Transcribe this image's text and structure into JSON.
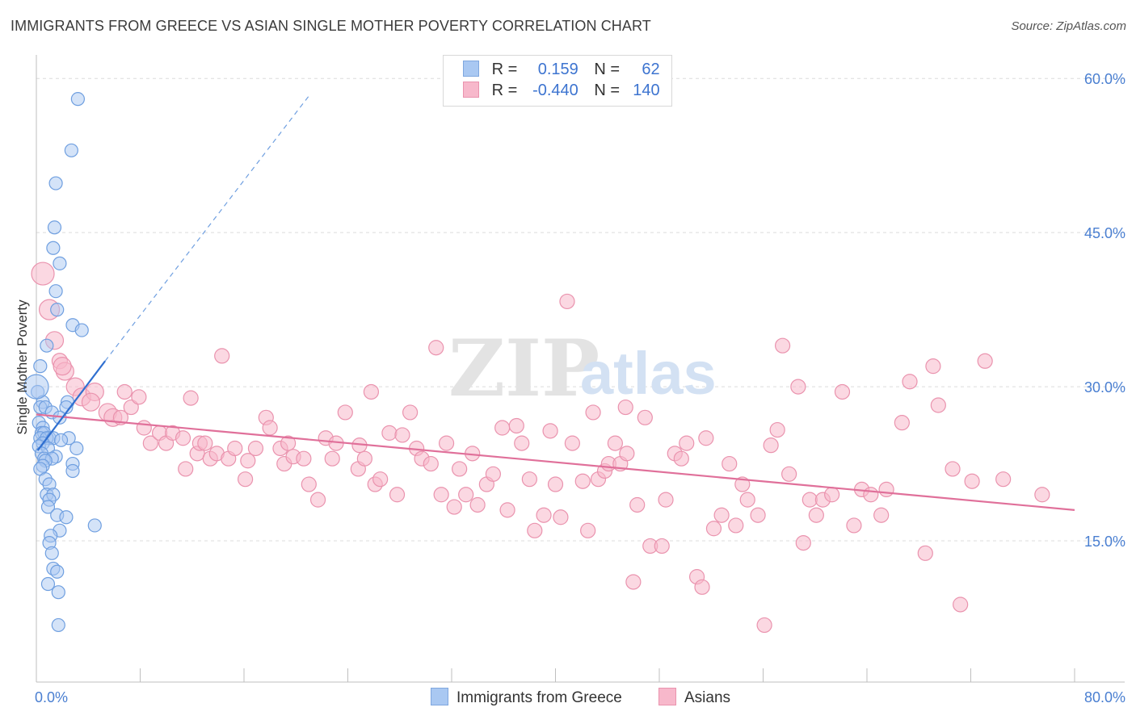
{
  "header": {
    "title": "IMMIGRANTS FROM GREECE VS ASIAN SINGLE MOTHER POVERTY CORRELATION CHART",
    "source": "Source: ZipAtlas.com"
  },
  "watermark": {
    "part1": "ZIP",
    "part2": "atlas"
  },
  "legend": {
    "rows": [
      {
        "r_label": "R =",
        "r_value": "0.159",
        "n_label": "N =",
        "n_value": "62",
        "color": "#a9c8f2"
      },
      {
        "r_label": "R =",
        "r_value": "-0.440",
        "n_label": "N =",
        "n_value": "140",
        "color": "#f7b8cb"
      }
    ]
  },
  "bottom_legend": [
    {
      "label": "Immigrants from Greece",
      "color": "#a9c8f2"
    },
    {
      "label": "Asians",
      "color": "#f7b8cb"
    }
  ],
  "chart_data": {
    "type": "scatter",
    "title": "IMMIGRANTS FROM GREECE VS ASIAN SINGLE MOTHER POVERTY CORRELATION CHART",
    "ylabel": "Single Mother Poverty",
    "xlabel": "",
    "xlim": [
      0,
      80
    ],
    "ylim": [
      0,
      60
    ],
    "x_tick_labels": [
      "0.0%",
      "80.0%"
    ],
    "y_tick_labels": [
      "15.0%",
      "30.0%",
      "45.0%",
      "60.0%"
    ],
    "y_ticks": [
      15,
      30,
      45,
      60
    ],
    "grid": true,
    "legend_position": "top-center",
    "colors": {
      "greece": "#6f9fe0",
      "asians": "#ee7fa2",
      "greece_line": "#2f6fd0",
      "asians_line": "#e0709a"
    },
    "series": [
      {
        "name": "Immigrants from Greece",
        "r": 0.159,
        "n": 62,
        "trend": {
          "x0": 0.1,
          "y0": 23.8,
          "x1": 5.3,
          "y1": 32.5,
          "dash_to_x": 21,
          "dash_to_y": 58.3
        },
        "points": [
          [
            3.2,
            58.0
          ],
          [
            2.7,
            53.0
          ],
          [
            1.5,
            49.8
          ],
          [
            1.4,
            45.5
          ],
          [
            1.3,
            43.5
          ],
          [
            1.8,
            42.0
          ],
          [
            1.5,
            39.3
          ],
          [
            1.6,
            37.5
          ],
          [
            2.8,
            36.0
          ],
          [
            3.5,
            35.5
          ],
          [
            0.8,
            34.0
          ],
          [
            0.3,
            32.0
          ],
          [
            0.1,
            29.5
          ],
          [
            2.4,
            28.5
          ],
          [
            0.5,
            28.5
          ],
          [
            0.3,
            28.0
          ],
          [
            0.7,
            28.0
          ],
          [
            2.3,
            28.0
          ],
          [
            1.2,
            27.5
          ],
          [
            1.8,
            27.0
          ],
          [
            0.2,
            26.5
          ],
          [
            0.5,
            26.0
          ],
          [
            0.4,
            25.5
          ],
          [
            0.6,
            25.5
          ],
          [
            1.0,
            25.0
          ],
          [
            2.5,
            25.0
          ],
          [
            0.3,
            25.0
          ],
          [
            0.8,
            25.0
          ],
          [
            1.3,
            25.0
          ],
          [
            1.9,
            24.8
          ],
          [
            0.5,
            24.5
          ],
          [
            0.2,
            24.2
          ],
          [
            0.9,
            24.0
          ],
          [
            3.1,
            24.0
          ],
          [
            0.4,
            23.5
          ],
          [
            0.6,
            23.0
          ],
          [
            1.5,
            23.2
          ],
          [
            1.2,
            23.0
          ],
          [
            0.7,
            22.8
          ],
          [
            2.8,
            22.5
          ],
          [
            0.5,
            22.3
          ],
          [
            0.3,
            22.0
          ],
          [
            2.8,
            21.8
          ],
          [
            0.7,
            21.0
          ],
          [
            1.0,
            20.5
          ],
          [
            0.8,
            19.5
          ],
          [
            1.3,
            19.5
          ],
          [
            1.0,
            19.0
          ],
          [
            0.9,
            18.3
          ],
          [
            1.6,
            17.5
          ],
          [
            2.3,
            17.3
          ],
          [
            4.5,
            16.5
          ],
          [
            1.8,
            16.0
          ],
          [
            1.1,
            15.5
          ],
          [
            1.0,
            14.8
          ],
          [
            1.2,
            13.8
          ],
          [
            1.3,
            12.3
          ],
          [
            1.6,
            12.0
          ],
          [
            0.9,
            10.8
          ],
          [
            1.7,
            10.0
          ],
          [
            1.7,
            6.8
          ],
          [
            0.0,
            30.0
          ]
        ]
      },
      {
        "name": "Asians",
        "r": -0.44,
        "n": 140,
        "trend": {
          "x0": 0,
          "y0": 27.3,
          "x1": 80,
          "y1": 18.0
        },
        "points": [
          [
            0.5,
            41.0
          ],
          [
            1.0,
            37.5
          ],
          [
            1.4,
            34.5
          ],
          [
            1.8,
            32.5
          ],
          [
            2.2,
            31.5
          ],
          [
            2.0,
            32.0
          ],
          [
            3.0,
            30.0
          ],
          [
            3.5,
            29.0
          ],
          [
            4.5,
            29.5
          ],
          [
            4.2,
            28.5
          ],
          [
            5.5,
            27.5
          ],
          [
            5.9,
            27.0
          ],
          [
            6.5,
            27.0
          ],
          [
            7.3,
            28.0
          ],
          [
            6.8,
            29.5
          ],
          [
            7.9,
            29.0
          ],
          [
            8.3,
            26.0
          ],
          [
            8.8,
            24.5
          ],
          [
            9.5,
            25.5
          ],
          [
            10.0,
            24.5
          ],
          [
            10.5,
            25.5
          ],
          [
            11.3,
            25.0
          ],
          [
            11.5,
            22.0
          ],
          [
            11.9,
            28.9
          ],
          [
            12.4,
            23.5
          ],
          [
            12.6,
            24.5
          ],
          [
            13.0,
            24.5
          ],
          [
            13.4,
            23.0
          ],
          [
            13.9,
            23.5
          ],
          [
            14.3,
            33.0
          ],
          [
            14.8,
            23.0
          ],
          [
            15.3,
            24.0
          ],
          [
            16.1,
            21.0
          ],
          [
            16.3,
            22.8
          ],
          [
            16.9,
            24.0
          ],
          [
            17.7,
            27.0
          ],
          [
            18.0,
            26.0
          ],
          [
            18.8,
            24.0
          ],
          [
            19.1,
            22.5
          ],
          [
            19.4,
            24.5
          ],
          [
            19.8,
            23.2
          ],
          [
            20.6,
            23.0
          ],
          [
            21.0,
            20.5
          ],
          [
            21.7,
            19.0
          ],
          [
            22.3,
            25.0
          ],
          [
            22.8,
            23.0
          ],
          [
            23.1,
            24.5
          ],
          [
            23.8,
            27.5
          ],
          [
            24.8,
            22.0
          ],
          [
            24.9,
            24.3
          ],
          [
            25.3,
            23.0
          ],
          [
            25.8,
            29.5
          ],
          [
            26.1,
            20.5
          ],
          [
            26.5,
            21.0
          ],
          [
            27.2,
            25.5
          ],
          [
            27.8,
            19.5
          ],
          [
            28.2,
            25.3
          ],
          [
            28.8,
            27.5
          ],
          [
            29.3,
            24.0
          ],
          [
            29.7,
            23.0
          ],
          [
            30.4,
            22.5
          ],
          [
            30.8,
            33.8
          ],
          [
            31.2,
            19.5
          ],
          [
            31.6,
            24.5
          ],
          [
            32.2,
            18.3
          ],
          [
            32.6,
            22.0
          ],
          [
            33.1,
            19.5
          ],
          [
            33.6,
            23.5
          ],
          [
            34.0,
            18.5
          ],
          [
            34.7,
            20.5
          ],
          [
            35.2,
            21.5
          ],
          [
            35.9,
            26.0
          ],
          [
            36.3,
            18.0
          ],
          [
            37.0,
            26.2
          ],
          [
            37.4,
            24.5
          ],
          [
            38.0,
            21.0
          ],
          [
            38.4,
            16.0
          ],
          [
            39.1,
            17.5
          ],
          [
            39.6,
            25.7
          ],
          [
            40.0,
            20.5
          ],
          [
            40.4,
            17.3
          ],
          [
            40.9,
            38.3
          ],
          [
            41.3,
            24.5
          ],
          [
            42.1,
            20.8
          ],
          [
            42.5,
            16.0
          ],
          [
            42.9,
            27.5
          ],
          [
            43.3,
            21.0
          ],
          [
            43.8,
            21.8
          ],
          [
            44.1,
            22.5
          ],
          [
            44.6,
            24.5
          ],
          [
            45.0,
            22.5
          ],
          [
            45.4,
            28.0
          ],
          [
            46.0,
            11.0
          ],
          [
            46.3,
            18.5
          ],
          [
            46.9,
            27.0
          ],
          [
            47.3,
            14.5
          ],
          [
            48.2,
            14.5
          ],
          [
            48.5,
            19.0
          ],
          [
            49.2,
            23.5
          ],
          [
            49.7,
            23.0
          ],
          [
            50.1,
            24.5
          ],
          [
            50.9,
            11.5
          ],
          [
            51.3,
            10.5
          ],
          [
            51.6,
            25.0
          ],
          [
            52.2,
            16.2
          ],
          [
            52.8,
            17.5
          ],
          [
            53.4,
            22.5
          ],
          [
            53.9,
            16.5
          ],
          [
            54.4,
            20.5
          ],
          [
            54.8,
            19.0
          ],
          [
            55.6,
            17.5
          ],
          [
            56.1,
            6.8
          ],
          [
            56.6,
            24.3
          ],
          [
            57.1,
            25.8
          ],
          [
            57.5,
            34.0
          ],
          [
            58.0,
            21.5
          ],
          [
            58.7,
            30.0
          ],
          [
            59.1,
            14.8
          ],
          [
            59.6,
            19.0
          ],
          [
            60.1,
            17.5
          ],
          [
            60.6,
            19.0
          ],
          [
            61.3,
            19.5
          ],
          [
            62.1,
            29.5
          ],
          [
            63.0,
            16.5
          ],
          [
            63.6,
            20.0
          ],
          [
            64.3,
            19.5
          ],
          [
            65.1,
            17.5
          ],
          [
            65.5,
            20.0
          ],
          [
            66.7,
            26.5
          ],
          [
            67.3,
            30.5
          ],
          [
            68.5,
            13.8
          ],
          [
            69.1,
            32.0
          ],
          [
            69.5,
            28.2
          ],
          [
            70.6,
            22.0
          ],
          [
            71.2,
            8.8
          ],
          [
            72.1,
            20.8
          ],
          [
            73.1,
            32.5
          ],
          [
            74.5,
            21.0
          ],
          [
            77.5,
            19.5
          ],
          [
            45.5,
            23.5
          ]
        ]
      }
    ]
  }
}
